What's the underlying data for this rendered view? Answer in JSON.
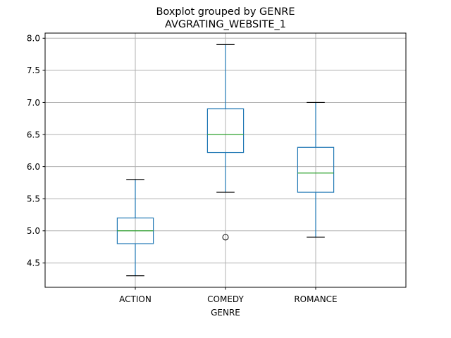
{
  "chart_data": {
    "type": "boxplot",
    "title": "Boxplot grouped by GENRE",
    "subtitle": "AVGRATING_WEBSITE_1",
    "xlabel": "GENRE",
    "ylabel": "",
    "ylim": [
      4.12,
      8.08
    ],
    "yticks": [
      "4.5",
      "5.0",
      "5.5",
      "6.0",
      "6.5",
      "7.0",
      "7.5",
      "8.0"
    ],
    "grid": true,
    "categories": [
      "ACTION",
      "COMEDY",
      "ROMANCE"
    ],
    "boxes": [
      {
        "category": "ACTION",
        "whisker_low": 4.3,
        "q1": 4.8,
        "median": 5.0,
        "q3": 5.2,
        "whisker_high": 5.8,
        "outliers": []
      },
      {
        "category": "COMEDY",
        "whisker_low": 5.6,
        "q1": 6.22,
        "median": 6.5,
        "q3": 6.9,
        "whisker_high": 7.9,
        "outliers": [
          4.9
        ]
      },
      {
        "category": "ROMANCE",
        "whisker_low": 4.9,
        "q1": 5.6,
        "median": 5.9,
        "q3": 6.3,
        "whisker_high": 7.0,
        "outliers": []
      }
    ],
    "colors": {
      "box": "#1f77b4",
      "median": "#2ca02c",
      "whisker_cap": "#000000",
      "grid": "#b0b0b0",
      "outlier_edge": "#000000"
    }
  }
}
